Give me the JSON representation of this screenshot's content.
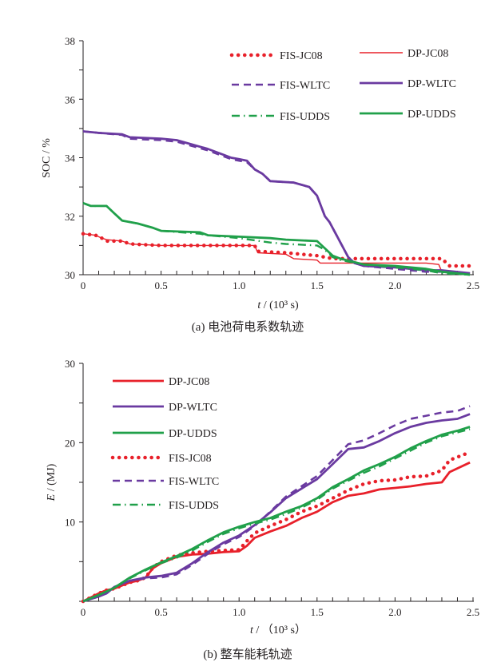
{
  "chart_data": [
    {
      "type": "line",
      "caption": "(a)  电池荷电系数轨迹",
      "title": "",
      "xlabel_italic": "t",
      "xlabel_rest": " / (10³ s)",
      "ylabel": "SOC / %",
      "xlim": [
        0,
        2.5
      ],
      "ylim": [
        30,
        38
      ],
      "xticks": [
        0,
        0.5,
        1.0,
        1.5,
        2.0,
        2.5
      ],
      "xtick_labels": [
        "0",
        "0.5",
        "1.0",
        "1.5",
        "2.0",
        "2.5"
      ],
      "yticks": [
        30,
        32,
        34,
        36,
        38
      ],
      "ytick_labels": [
        "30",
        "32",
        "34",
        "36",
        "38"
      ],
      "grid": false,
      "legend_position": "top-right",
      "legend": [
        {
          "name": "FIS-JC08",
          "color": "#e8202a",
          "style": "dotted"
        },
        {
          "name": "DP-JC08",
          "color": "#e8202a",
          "style": "thin"
        },
        {
          "name": "FIS-WLTC",
          "color": "#6a3aa0",
          "style": "dashed"
        },
        {
          "name": "DP-WLTC",
          "color": "#6a3aa0",
          "style": "solid"
        },
        {
          "name": "FIS-UDDS",
          "color": "#20a04a",
          "style": "dashdot"
        },
        {
          "name": "DP-UDDS",
          "color": "#20a04a",
          "style": "solid"
        }
      ],
      "series": [
        {
          "name": "DP-JC08",
          "color": "#e8202a",
          "style": "thin",
          "x": [
            0,
            0.08,
            0.12,
            0.15,
            0.25,
            0.3,
            0.5,
            0.8,
            1.0,
            1.1,
            1.12,
            1.3,
            1.35,
            1.5,
            1.52,
            1.7,
            2.0,
            2.2,
            2.28,
            2.3,
            2.48
          ],
          "y": [
            31.4,
            31.35,
            31.25,
            31.2,
            31.15,
            31.05,
            31.0,
            31.0,
            31.0,
            31.0,
            30.75,
            30.7,
            30.55,
            30.5,
            30.4,
            30.4,
            30.4,
            30.4,
            30.35,
            30.1,
            30.05
          ]
        },
        {
          "name": "FIS-JC08",
          "color": "#e8202a",
          "style": "dotted",
          "x": [
            0,
            0.08,
            0.12,
            0.15,
            0.25,
            0.3,
            0.5,
            0.8,
            1.0,
            1.1,
            1.12,
            1.3,
            1.4,
            1.5,
            1.55,
            1.6,
            1.8,
            2.0,
            2.3,
            2.35,
            2.48
          ],
          "y": [
            31.4,
            31.35,
            31.25,
            31.15,
            31.15,
            31.05,
            31.0,
            31.0,
            31.0,
            31.0,
            30.8,
            30.75,
            30.7,
            30.65,
            30.6,
            30.55,
            30.55,
            30.55,
            30.55,
            30.3,
            30.3
          ]
        },
        {
          "name": "DP-WLTC",
          "color": "#6a3aa0",
          "style": "solid",
          "x": [
            0,
            0.1,
            0.25,
            0.3,
            0.5,
            0.6,
            0.7,
            0.8,
            0.9,
            0.95,
            1.0,
            1.05,
            1.1,
            1.15,
            1.2,
            1.35,
            1.45,
            1.5,
            1.55,
            1.58,
            1.62,
            1.66,
            1.7,
            1.74,
            1.8,
            2.0,
            2.2,
            2.3,
            2.48
          ],
          "y": [
            34.9,
            34.85,
            34.8,
            34.7,
            34.65,
            34.6,
            34.45,
            34.3,
            34.1,
            34.0,
            33.95,
            33.9,
            33.6,
            33.45,
            33.2,
            33.15,
            33.0,
            32.7,
            32.0,
            31.8,
            31.4,
            31.0,
            30.6,
            30.4,
            30.3,
            30.25,
            30.15,
            30.15,
            30.05
          ]
        },
        {
          "name": "FIS-WLTC",
          "color": "#6a3aa0",
          "style": "dashed",
          "x": [
            0,
            0.1,
            0.25,
            0.3,
            0.5,
            0.6,
            0.7,
            0.8,
            0.9,
            0.95,
            1.0,
            1.05,
            1.1,
            1.15,
            1.2,
            1.35,
            1.45,
            1.5,
            1.55,
            1.58,
            1.62,
            1.66,
            1.7,
            1.74,
            1.8,
            2.0,
            2.2,
            2.3,
            2.48
          ],
          "y": [
            34.9,
            34.85,
            34.78,
            34.65,
            34.6,
            34.55,
            34.4,
            34.25,
            34.05,
            33.95,
            33.9,
            33.85,
            33.6,
            33.45,
            33.2,
            33.15,
            33.0,
            32.7,
            32.0,
            31.8,
            31.4,
            31.0,
            30.6,
            30.4,
            30.3,
            30.2,
            30.1,
            30.1,
            30.05
          ]
        },
        {
          "name": "DP-UDDS",
          "color": "#20a04a",
          "style": "solid",
          "x": [
            0,
            0.05,
            0.15,
            0.2,
            0.25,
            0.35,
            0.45,
            0.5,
            0.75,
            0.8,
            1.0,
            1.2,
            1.3,
            1.5,
            1.55,
            1.6,
            1.65,
            1.8,
            2.0,
            2.2,
            2.3,
            2.48
          ],
          "y": [
            32.45,
            32.35,
            32.35,
            32.1,
            31.85,
            31.75,
            31.6,
            31.5,
            31.45,
            31.35,
            31.3,
            31.25,
            31.2,
            31.15,
            30.9,
            30.65,
            30.55,
            30.35,
            30.3,
            30.2,
            30.1,
            30.0
          ]
        },
        {
          "name": "FIS-UDDS",
          "color": "#20a04a",
          "style": "dashdot",
          "x": [
            0,
            0.05,
            0.15,
            0.2,
            0.25,
            0.35,
            0.45,
            0.5,
            0.75,
            0.8,
            1.0,
            1.2,
            1.3,
            1.5,
            1.55,
            1.6,
            1.65,
            1.8,
            2.0,
            2.2,
            2.3,
            2.48
          ],
          "y": [
            32.45,
            32.35,
            32.35,
            32.1,
            31.85,
            31.75,
            31.6,
            31.5,
            31.4,
            31.35,
            31.25,
            31.1,
            31.05,
            31.0,
            30.85,
            30.6,
            30.5,
            30.35,
            30.25,
            30.15,
            30.05,
            30.0
          ]
        }
      ]
    },
    {
      "type": "line",
      "caption": "(b)  整车能耗轨迹",
      "title": "",
      "xlabel_italic": "t",
      "xlabel_rest": " / （10³ s）",
      "ylabel_italic": "E",
      "ylabel_rest": " / (MJ)",
      "xlim": [
        0,
        2.5
      ],
      "ylim": [
        0,
        30
      ],
      "xticks": [
        0,
        0.5,
        1.0,
        1.5,
        2.0,
        2.5
      ],
      "xtick_labels": [
        "0",
        "0.5",
        "1.0",
        "1.5",
        "2.0",
        "2.5"
      ],
      "yticks": [
        10,
        20,
        30
      ],
      "ytick_labels": [
        "10",
        "20",
        "30"
      ],
      "grid": false,
      "legend_position": "top-left",
      "legend": [
        {
          "name": "DP-JC08",
          "color": "#e8202a",
          "style": "solid"
        },
        {
          "name": "DP-WLTC",
          "color": "#6a3aa0",
          "style": "solid"
        },
        {
          "name": "DP-UDDS",
          "color": "#20a04a",
          "style": "solid"
        },
        {
          "name": "FIS-JC08",
          "color": "#e8202a",
          "style": "dotted"
        },
        {
          "name": "FIS-WLTC",
          "color": "#6a3aa0",
          "style": "dashed"
        },
        {
          "name": "FIS-UDDS",
          "color": "#20a04a",
          "style": "dashdot"
        }
      ],
      "series": [
        {
          "name": "DP-JC08",
          "color": "#e8202a",
          "style": "solid",
          "x": [
            0,
            0.1,
            0.15,
            0.2,
            0.3,
            0.35,
            0.4,
            0.45,
            0.5,
            0.6,
            0.7,
            0.8,
            0.9,
            1.0,
            1.05,
            1.1,
            1.2,
            1.3,
            1.4,
            1.5,
            1.6,
            1.7,
            1.8,
            1.9,
            2.0,
            2.1,
            2.2,
            2.3,
            2.35,
            2.48
          ],
          "y": [
            0,
            1.0,
            1.4,
            1.6,
            2.4,
            2.6,
            3.0,
            4.2,
            4.8,
            5.6,
            5.9,
            6.0,
            6.2,
            6.3,
            7.0,
            8.0,
            8.8,
            9.5,
            10.5,
            11.3,
            12.5,
            13.3,
            13.6,
            14.1,
            14.3,
            14.5,
            14.8,
            15.0,
            16.3,
            17.5
          ]
        },
        {
          "name": "FIS-JC08",
          "color": "#e8202a",
          "style": "dotted",
          "x": [
            0,
            0.1,
            0.15,
            0.2,
            0.3,
            0.35,
            0.4,
            0.45,
            0.5,
            0.6,
            0.7,
            0.8,
            0.9,
            1.0,
            1.05,
            1.1,
            1.2,
            1.3,
            1.4,
            1.5,
            1.6,
            1.7,
            1.8,
            1.9,
            2.0,
            2.1,
            2.2,
            2.3,
            2.35,
            2.48
          ],
          "y": [
            0,
            1.0,
            1.4,
            1.6,
            2.4,
            2.6,
            3.0,
            4.3,
            5.0,
            5.8,
            6.1,
            6.3,
            6.4,
            6.5,
            7.6,
            8.6,
            9.5,
            10.3,
            11.3,
            12.0,
            13.0,
            14.0,
            14.8,
            15.2,
            15.3,
            15.7,
            15.8,
            16.5,
            17.8,
            18.8
          ]
        },
        {
          "name": "DP-WLTC",
          "color": "#6a3aa0",
          "style": "solid",
          "x": [
            0,
            0.1,
            0.15,
            0.2,
            0.3,
            0.4,
            0.5,
            0.6,
            0.7,
            0.8,
            0.9,
            1.0,
            1.1,
            1.2,
            1.3,
            1.4,
            1.5,
            1.6,
            1.7,
            1.8,
            1.9,
            2.0,
            2.1,
            2.2,
            2.3,
            2.4,
            2.48
          ],
          "y": [
            0,
            0.6,
            1.0,
            1.8,
            2.6,
            3.0,
            3.2,
            3.6,
            4.8,
            6.2,
            7.4,
            8.3,
            9.6,
            11.2,
            13.0,
            14.2,
            15.4,
            17.3,
            19.2,
            19.4,
            20.2,
            21.2,
            22.0,
            22.5,
            22.8,
            23.0,
            23.6
          ]
        },
        {
          "name": "FIS-WLTC",
          "color": "#6a3aa0",
          "style": "dashed",
          "x": [
            0,
            0.1,
            0.15,
            0.2,
            0.3,
            0.4,
            0.5,
            0.6,
            0.7,
            0.8,
            0.9,
            1.0,
            1.1,
            1.2,
            1.3,
            1.4,
            1.5,
            1.6,
            1.7,
            1.8,
            1.9,
            2.0,
            2.1,
            2.2,
            2.3,
            2.4,
            2.48
          ],
          "y": [
            0,
            0.6,
            1.0,
            1.8,
            2.6,
            2.9,
            3.0,
            3.4,
            4.6,
            6.0,
            7.2,
            8.1,
            9.5,
            11.3,
            13.2,
            14.5,
            15.8,
            17.8,
            19.8,
            20.3,
            21.2,
            22.2,
            23.0,
            23.4,
            23.8,
            24.0,
            24.6
          ]
        },
        {
          "name": "DP-UDDS",
          "color": "#20a04a",
          "style": "solid",
          "x": [
            0,
            0.1,
            0.2,
            0.3,
            0.4,
            0.5,
            0.6,
            0.7,
            0.8,
            0.9,
            1.0,
            1.1,
            1.2,
            1.3,
            1.4,
            1.5,
            1.6,
            1.7,
            1.8,
            1.9,
            2.0,
            2.1,
            2.2,
            2.3,
            2.4,
            2.48
          ],
          "y": [
            0,
            0.8,
            1.7,
            3.0,
            4.0,
            4.9,
            5.7,
            6.6,
            7.7,
            8.7,
            9.4,
            10.0,
            10.5,
            11.3,
            12.0,
            13.0,
            14.4,
            15.4,
            16.5,
            17.3,
            18.2,
            19.3,
            20.2,
            21.0,
            21.5,
            22.0
          ]
        },
        {
          "name": "FIS-UDDS",
          "color": "#20a04a",
          "style": "dashdot",
          "x": [
            0,
            0.1,
            0.2,
            0.3,
            0.4,
            0.5,
            0.6,
            0.7,
            0.8,
            0.9,
            1.0,
            1.1,
            1.2,
            1.3,
            1.4,
            1.5,
            1.6,
            1.7,
            1.8,
            1.9,
            2.0,
            2.1,
            2.2,
            2.3,
            2.4,
            2.48
          ],
          "y": [
            0,
            0.8,
            1.7,
            2.9,
            3.9,
            4.8,
            5.5,
            6.4,
            7.5,
            8.5,
            9.2,
            9.8,
            10.3,
            11.0,
            11.8,
            12.8,
            14.2,
            15.2,
            16.2,
            17.0,
            18.0,
            19.0,
            20.0,
            20.8,
            21.3,
            21.7
          ]
        }
      ]
    }
  ]
}
